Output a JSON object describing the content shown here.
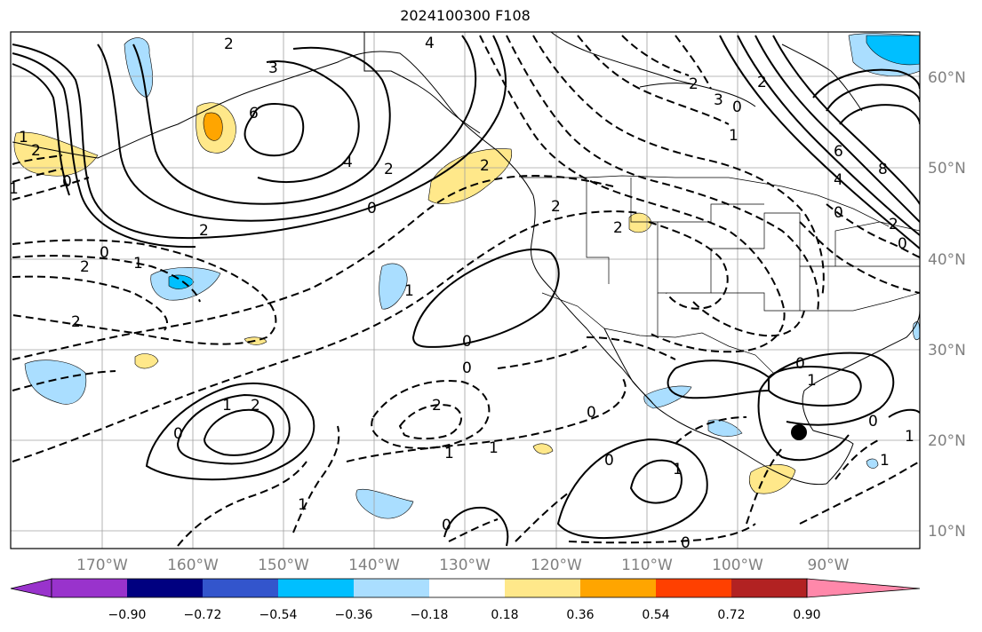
{
  "title": "2024100300 F108",
  "latitude_labels": [
    "60°N",
    "50°N",
    "40°N",
    "30°N",
    "20°N",
    "10°N"
  ],
  "longitude_labels": [
    "170°W",
    "160°W",
    "150°W",
    "140°W",
    "130°W",
    "120°W",
    "110°W",
    "100°W",
    "90°W"
  ],
  "colorbar": {
    "ticks": [
      "−0.90",
      "−0.72",
      "−0.54",
      "−0.36",
      "−0.18",
      "0.18",
      "0.36",
      "0.54",
      "0.72",
      "0.90"
    ],
    "colors": [
      "#9933cc",
      "#000080",
      "#3355cc",
      "#00bfff",
      "#aadeff",
      "#ffffff",
      "#ffe88a",
      "#ffa500",
      "#ff4000",
      "#b22222",
      "#ff88aa"
    ]
  },
  "contour_labels": [
    "2",
    "4",
    "3",
    "6",
    "4",
    "2",
    "0",
    "2",
    "0",
    "1",
    "0",
    "2",
    "1",
    "2",
    "0",
    "1",
    "2",
    "2",
    "0",
    "0",
    "1",
    "2",
    "0",
    "2",
    "1",
    "0",
    "1",
    "1",
    "0",
    "0",
    "1",
    "0",
    "0",
    "1",
    "1",
    "2",
    "3",
    "2",
    "1",
    "0",
    "6",
    "8",
    "4",
    "0",
    "1",
    "2",
    "2",
    "2",
    "0",
    "1"
  ],
  "marker": {
    "lat": 20.5,
    "lon": -93.5,
    "color": "#000000"
  },
  "colors": {
    "contour": "#000000",
    "grid": "#a0a0a0",
    "coast": "#000000"
  }
}
